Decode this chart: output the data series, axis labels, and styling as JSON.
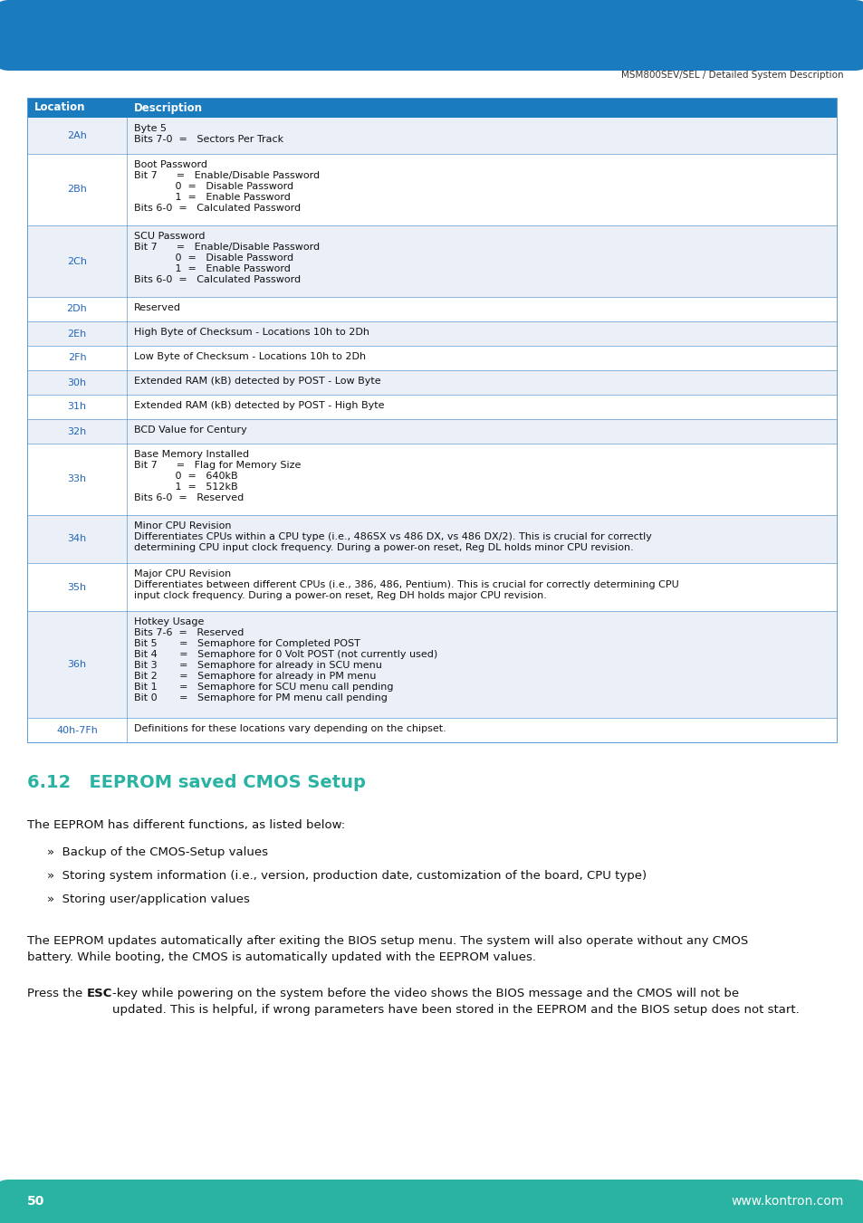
{
  "header_text": "MSM800SEV/SEL / Detailed System Description",
  "footer_page": "50",
  "footer_url": "www.kontron.com",
  "header_bar_color": "#1a7bbf",
  "footer_bar_color": "#2ab3a3",
  "table_header_bg": "#1a7bbf",
  "table_row_bg_alt": "#eaeff8",
  "table_row_bg_white": "#ffffff",
  "table_border_color": "#5b9bd5",
  "location_color": "#2266bb",
  "section_title_color": "#2ab3a3",
  "section_title": "6.12   EEPROM saved CMOS Setup",
  "body_text_color": "#111111",
  "table_rows": [
    {
      "location": "2Ah",
      "description": "Byte 5\nBits 7-0  =   Sectors Per Track",
      "alt": true
    },
    {
      "location": "2Bh",
      "description": "Boot Password\nBit 7      =   Enable/Disable Password\n             0  =   Disable Password\n             1  =   Enable Password\nBits 6-0  =   Calculated Password",
      "alt": false
    },
    {
      "location": "2Ch",
      "description": "SCU Password\nBit 7      =   Enable/Disable Password\n             0  =   Disable Password\n             1  =   Enable Password\nBits 6-0  =   Calculated Password",
      "alt": true
    },
    {
      "location": "2Dh",
      "description": "Reserved",
      "alt": false
    },
    {
      "location": "2Eh",
      "description": "High Byte of Checksum - Locations 10h to 2Dh",
      "alt": true
    },
    {
      "location": "2Fh",
      "description": "Low Byte of Checksum - Locations 10h to 2Dh",
      "alt": false
    },
    {
      "location": "30h",
      "description": "Extended RAM (kB) detected by POST - Low Byte",
      "alt": true
    },
    {
      "location": "31h",
      "description": "Extended RAM (kB) detected by POST - High Byte",
      "alt": false
    },
    {
      "location": "32h",
      "description": "BCD Value for Century",
      "alt": true
    },
    {
      "location": "33h",
      "description": "Base Memory Installed\nBit 7      =   Flag for Memory Size\n             0  =   640kB\n             1  =   512kB\nBits 6-0  =   Reserved",
      "alt": false
    },
    {
      "location": "34h",
      "description": "Minor CPU Revision\nDifferentiates CPUs within a CPU type (i.e., 486SX vs 486 DX, vs 486 DX/2). This is crucial for correctly\ndetermining CPU input clock frequency. During a power-on reset, Reg DL holds minor CPU revision.",
      "alt": true
    },
    {
      "location": "35h",
      "description": "Major CPU Revision\nDifferentiates between different CPUs (i.e., 386, 486, Pentium). This is crucial for correctly determining CPU\ninput clock frequency. During a power-on reset, Reg DH holds major CPU revision.",
      "alt": false
    },
    {
      "location": "36h",
      "description": "Hotkey Usage\nBits 7-6  =   Reserved\nBit 5       =   Semaphore for Completed POST\nBit 4       =   Semaphore for 0 Volt POST (not currently used)\nBit 3       =   Semaphore for already in SCU menu\nBit 2       =   Semaphore for already in PM menu\nBit 1       =   Semaphore for SCU menu call pending\nBit 0       =   Semaphore for PM menu call pending",
      "alt": true
    },
    {
      "location": "40h-7Fh",
      "description": "Definitions for these locations vary depending on the chipset.",
      "alt": false
    }
  ],
  "para1": "The EEPROM has different functions, as listed below:",
  "bullets": [
    "Backup of the CMOS-Setup values",
    "Storing system information (i.e., version, production date, customization of the board, CPU type)",
    "Storing user/application values"
  ],
  "para2": "The EEPROM updates automatically after exiting the BIOS setup menu. The system will also operate without any CMOS\nbattery. While booting, the CMOS is automatically updated with the EEPROM values.",
  "para3_pre": "Press the ",
  "para3_bold": "ESC",
  "para3_post": "-key while powering on the system before the video shows the BIOS message and the CMOS will not be\nupdated. This is helpful, if wrong parameters have been stored in the EEPROM and the BIOS setup does not start."
}
